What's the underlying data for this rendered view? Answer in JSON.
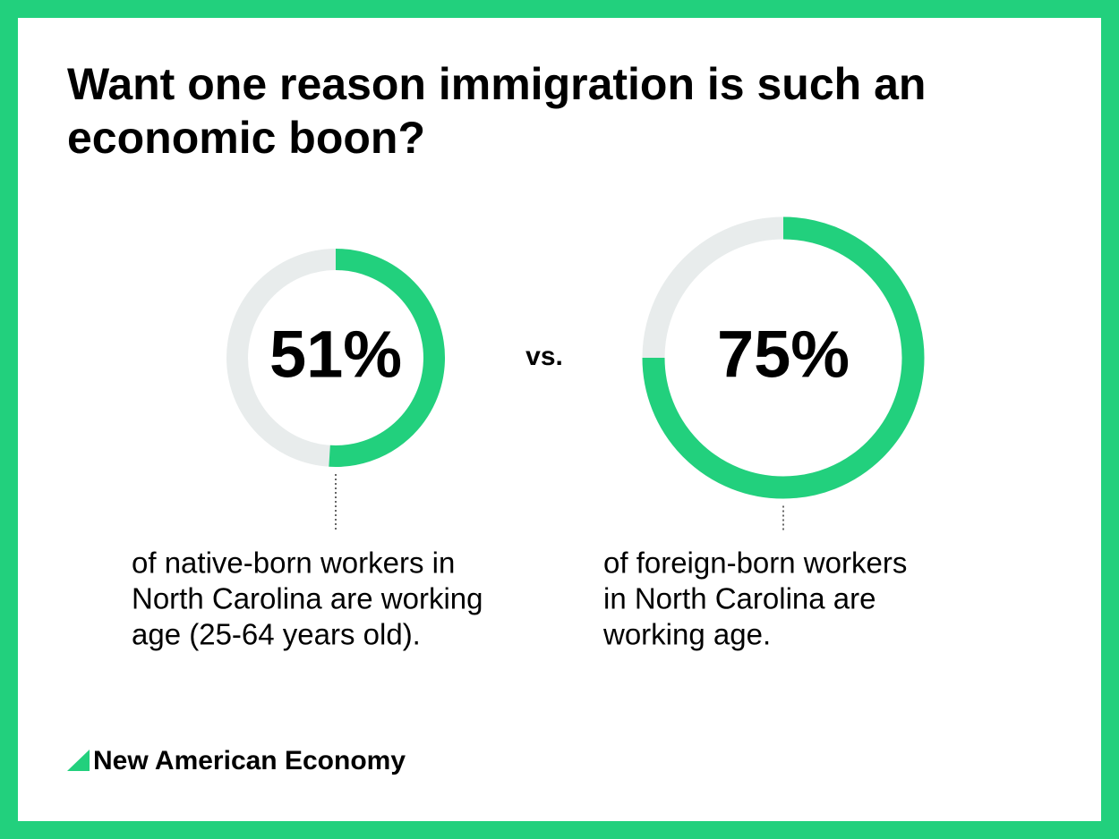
{
  "title": [
    "Want one reason immigration is such an",
    "economic boon?"
  ],
  "chart_data": [
    {
      "type": "donut",
      "values": [
        51
      ],
      "value_labels": [
        "51%"
      ],
      "color": "#22d07d",
      "track_color": "#e8ecec",
      "caption": [
        "of native-born workers in",
        "North Carolina are working",
        "age (25-64 years old)."
      ]
    },
    {
      "type": "donut",
      "values": [
        75
      ],
      "value_labels": [
        "75%"
      ],
      "color": "#22d07d",
      "track_color": "#e8ecec",
      "caption": [
        "of foreign-born workers",
        "in North Carolina are",
        "working age."
      ]
    }
  ],
  "separator": "vs.",
  "footer": "New American Economy"
}
